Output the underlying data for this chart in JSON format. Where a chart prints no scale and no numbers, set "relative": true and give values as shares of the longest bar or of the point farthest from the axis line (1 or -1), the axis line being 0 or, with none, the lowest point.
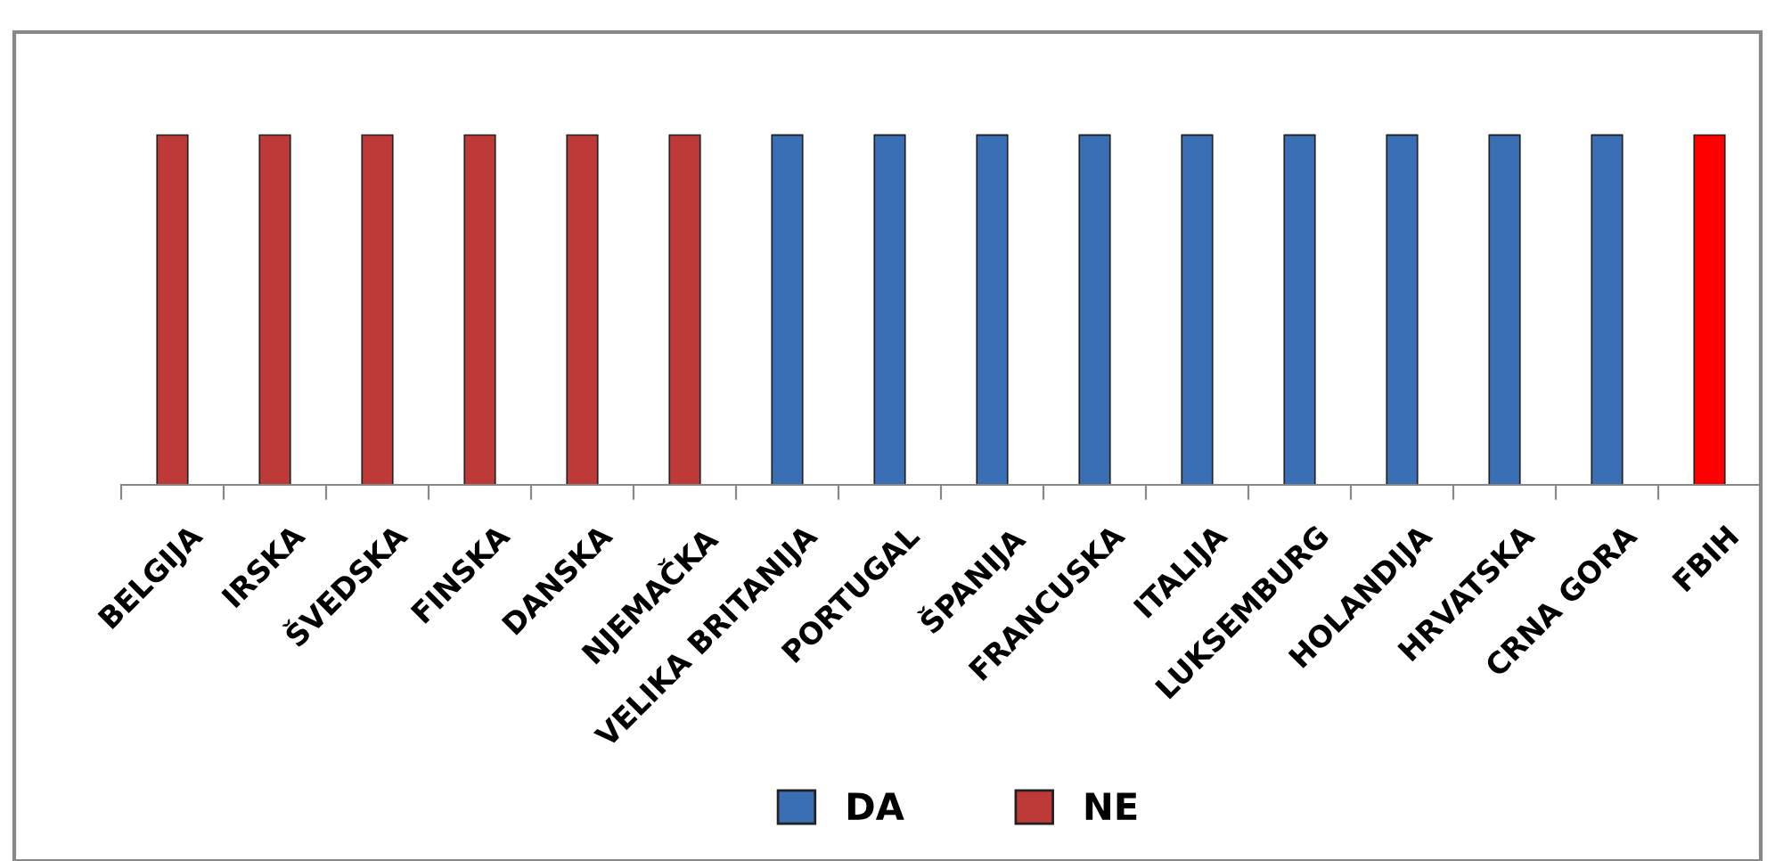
{
  "chart_data": {
    "type": "bar",
    "relative": true,
    "stacked": true,
    "categories": [
      "BELGIJA",
      "IRSKA",
      "ŠVEDSKA",
      "FINSKA",
      "DANSKA",
      "NJEMAČKA",
      "VELIKA BRITANIJA",
      "PORTUGAL",
      "ŠPANIJA",
      "FRANCUSKA",
      "ITALIJA",
      "LUKSEMBURG",
      "HOLANDIJA",
      "HRVATSKA",
      "CRNA GORA",
      "FBIH"
    ],
    "series": [
      {
        "name": "DA",
        "color": "#3a6fb5",
        "values": [
          null,
          null,
          null,
          null,
          null,
          null,
          1,
          1,
          1,
          1,
          1,
          1,
          1,
          1,
          1,
          null
        ]
      },
      {
        "name": "NE",
        "color": "#be3a38",
        "colors": [
          "#be3a38",
          "#be3a38",
          "#be3a38",
          "#be3a38",
          "#be3a38",
          "#be3a38",
          null,
          null,
          null,
          null,
          null,
          null,
          null,
          null,
          null,
          "#ff0000"
        ],
        "values": [
          1,
          1,
          1,
          1,
          1,
          1,
          null,
          null,
          null,
          null,
          null,
          null,
          null,
          null,
          null,
          1
        ]
      }
    ],
    "legend": "bottom",
    "grid": false
  }
}
